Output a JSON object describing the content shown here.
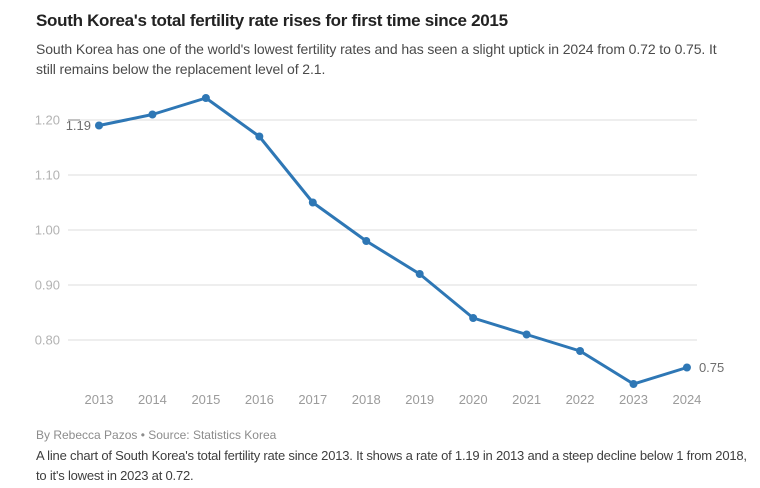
{
  "header": {
    "title": "South Korea's total fertility rate rises for first time since 2015",
    "subtitle": "South Korea has one of the world's lowest fertility rates and has seen a slight uptick in 2024 from 0.72 to 0.75. It still remains below the replacement level of 2.1."
  },
  "footer": {
    "byline": "By Rebecca Pazos • Source: Statistics Korea",
    "alt_text": "A line chart of South Korea's total fertility rate since 2013. It shows a rate of 1.19 in 2013 and a steep decline below 1 from 2018, to it's lowest in 2023 at 0.72."
  },
  "colors": {
    "line": "#2e77b5",
    "point": "#2e77b5",
    "grid": "#dcdcdc",
    "axis_tick": "#9a9a9a",
    "y_label": "#b3b3b3",
    "x_label": "#9b9b9b",
    "annotation": "#6e6e6e"
  },
  "chart_data": {
    "type": "line",
    "title": "South Korea's total fertility rate rises for first time since 2015",
    "xlabel": "",
    "ylabel": "",
    "x": [
      2013,
      2014,
      2015,
      2016,
      2017,
      2018,
      2019,
      2020,
      2021,
      2022,
      2023,
      2024
    ],
    "series": [
      {
        "name": "Total fertility rate",
        "values": [
          1.19,
          1.21,
          1.24,
          1.17,
          1.05,
          0.98,
          0.92,
          0.84,
          0.81,
          0.78,
          0.72,
          0.75
        ]
      }
    ],
    "y_ticks": [
      {
        "value": 1.2,
        "label": "1.20"
      },
      {
        "value": 1.1,
        "label": "1.10"
      },
      {
        "value": 1.0,
        "label": "1.00"
      },
      {
        "value": 0.9,
        "label": "0.90"
      },
      {
        "value": 0.8,
        "label": "0.80"
      }
    ],
    "ylim": [
      0.72,
      1.24
    ],
    "grid": "horizontal",
    "legend": "none",
    "point_labels": [
      {
        "x": 2013,
        "text": "1.19",
        "position": "left"
      },
      {
        "x": 2024,
        "text": "0.75",
        "position": "right"
      }
    ]
  }
}
